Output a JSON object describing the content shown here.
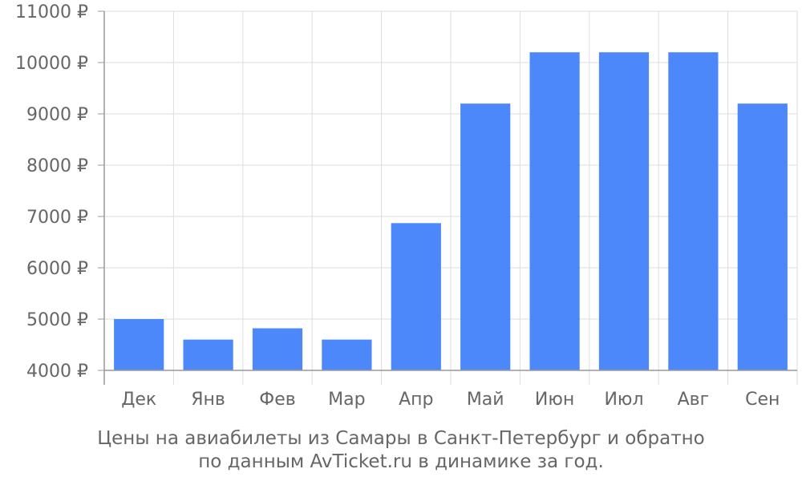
{
  "chart_data": {
    "type": "bar",
    "categories": [
      "Дек",
      "Янв",
      "Фев",
      "Мар",
      "Апр",
      "Май",
      "Июн",
      "Июл",
      "Авг",
      "Сен"
    ],
    "values": [
      5000,
      4600,
      4820,
      4600,
      6870,
      9200,
      10200,
      10200,
      10200,
      9200
    ],
    "y_ticks": [
      4000,
      5000,
      6000,
      7000,
      8000,
      9000,
      10000,
      11000
    ],
    "y_unit": "₽",
    "ylim": [
      4000,
      11000
    ],
    "grid": true,
    "bar_color": "#4d88fb",
    "grid_color": "#dddddd",
    "axis_color": "#999999"
  },
  "caption": {
    "line1": "Цены на авиабилеты из Самары в Санкт-Петербург и обратно",
    "line2": "по данным AvTicket.ru в динамике за год."
  }
}
